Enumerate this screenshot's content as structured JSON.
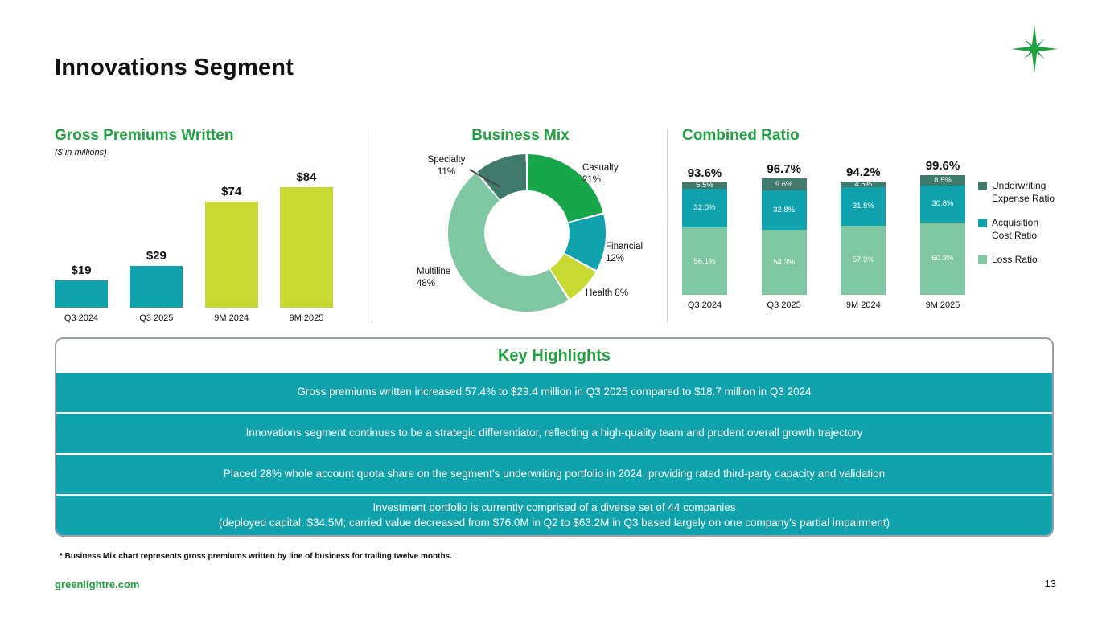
{
  "page": {
    "title": "Innovations Segment",
    "footnote": "* Business Mix chart represents gross premiums written by line of business for trailing twelve months.",
    "footer": {
      "website": "greenlightre.com",
      "page_number": "13"
    }
  },
  "colors": {
    "heading_green": "#1ea13f",
    "teal": "#10a3ad",
    "lime": "#c9d934",
    "sage": "#7fc7a2",
    "dark_teal": "#3f7a6d",
    "casualty_green": "#17a64a",
    "highlight_row_teal": "#10a3ad",
    "box_border_gray": "#98a2a8"
  },
  "chart_data": [
    {
      "type": "bar",
      "title": "Gross Premiums Written",
      "subtitle": "($ in millions)",
      "categories": [
        "Q3 2024",
        "Q3 2025",
        "9M 2024",
        "9M 2025"
      ],
      "values": [
        19,
        29,
        74,
        84
      ],
      "value_labels": [
        "$19",
        "$29",
        "$74",
        "$84"
      ],
      "bar_colors": [
        "#10a3ad",
        "#10a3ad",
        "#c9d934",
        "#c9d934"
      ],
      "ylim": [
        0,
        90
      ]
    },
    {
      "type": "pie",
      "donut": true,
      "title": "Business Mix",
      "labels": [
        "Casualty",
        "Financial",
        "Health",
        "Multiline",
        "Specialty"
      ],
      "values": [
        21,
        12,
        8,
        48,
        11
      ],
      "label_lines": [
        [
          "Casualty",
          "21%"
        ],
        [
          "Financial",
          "12%"
        ],
        [
          "Health 8%"
        ],
        [
          "Multiline",
          "48%"
        ],
        [
          "Specialty",
          "11%"
        ]
      ],
      "slice_colors": [
        "#17a64a",
        "#10a3ad",
        "#c9d934",
        "#7fc7a2",
        "#3f7a6d"
      ]
    },
    {
      "type": "bar",
      "stacked": true,
      "title": "Combined Ratio",
      "categories": [
        "Q3 2024",
        "Q3 2025",
        "9M 2024",
        "9M 2025"
      ],
      "totals": [
        "93.6%",
        "96.7%",
        "94.2%",
        "99.6%"
      ],
      "series": [
        {
          "name": "Loss Ratio",
          "values": [
            56.1,
            54.3,
            57.9,
            60.3
          ],
          "labels": [
            "56.1%",
            "54.3%",
            "57.9%",
            "60.3%"
          ],
          "color": "#7fc7a2"
        },
        {
          "name": "Acquisition Cost Ratio",
          "values": [
            32.0,
            32.8,
            31.8,
            30.8
          ],
          "labels": [
            "32.0%",
            "32.8%",
            "31.8%",
            "30.8%"
          ],
          "color": "#10a3ad"
        },
        {
          "name": "Underwriting Expense Ratio",
          "values": [
            5.5,
            9.6,
            4.5,
            8.5
          ],
          "labels": [
            "5.5%",
            "9.6%",
            "4.5%",
            "8.5%"
          ],
          "color": "#3f7a6d"
        }
      ]
    }
  ],
  "key_highlights": {
    "title": "Key Highlights",
    "items": [
      "Gross premiums written increased 57.4% to $29.4 million in Q3 2025 compared to $18.7 million in Q3 2024",
      "Innovations segment continues to be a strategic differentiator, reflecting a high-quality team and prudent overall growth trajectory",
      "Placed 28% whole account quota share on the segment’s underwriting portfolio in 2024, providing rated third-party capacity and validation",
      "Investment portfolio is currently comprised of a diverse set of 44 companies\n(deployed capital: $34.5M; carried value decreased from $76.0M in Q2 to $63.2M in Q3 based largely on one company’s partial impairment)"
    ]
  }
}
